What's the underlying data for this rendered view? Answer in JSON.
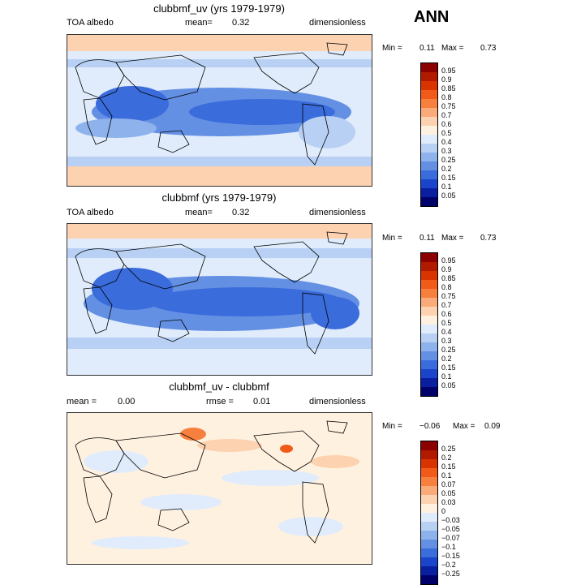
{
  "header": {
    "season": "ANN"
  },
  "panels": [
    {
      "title": "clubbmf_uv (yrs 1979-1979)",
      "variable": "TOA albedo",
      "stat_label": "mean=",
      "stat_value": "0.32",
      "units": "dimensionless",
      "min_label": "Min =",
      "min_value": "0.11",
      "max_label": "Max =",
      "max_value": "0.73",
      "colorbar": {
        "labels": [
          "0.95",
          "0.9",
          "0.85",
          "0.8",
          "0.75",
          "0.7",
          "0.6",
          "0.5",
          "0.4",
          "0.3",
          "0.25",
          "0.2",
          "0.15",
          "0.1",
          "0.05"
        ],
        "colors": [
          "#8b0000",
          "#b21a00",
          "#d93300",
          "#f25a1a",
          "#f7803f",
          "#fbaa7a",
          "#fdd2b0",
          "#fff1e0",
          "#e0ecfb",
          "#b8d0f4",
          "#8eb2ec",
          "#6490e4",
          "#3a6cdc",
          "#1a44cc",
          "#0a1ea0",
          "#00006b"
        ]
      }
    },
    {
      "title": "clubbmf (yrs 1979-1979)",
      "variable": "TOA albedo",
      "stat_label": "mean=",
      "stat_value": "0.32",
      "units": "dimensionless",
      "min_label": "Min =",
      "min_value": "0.11",
      "max_label": "Max =",
      "max_value": "0.73",
      "colorbar": {
        "labels": [
          "0.95",
          "0.9",
          "0.85",
          "0.8",
          "0.75",
          "0.7",
          "0.6",
          "0.5",
          "0.4",
          "0.3",
          "0.25",
          "0.2",
          "0.15",
          "0.1",
          "0.05"
        ],
        "colors": [
          "#8b0000",
          "#b21a00",
          "#d93300",
          "#f25a1a",
          "#f7803f",
          "#fbaa7a",
          "#fdd2b0",
          "#fff1e0",
          "#e0ecfb",
          "#b8d0f4",
          "#8eb2ec",
          "#6490e4",
          "#3a6cdc",
          "#1a44cc",
          "#0a1ea0",
          "#00006b"
        ]
      }
    },
    {
      "title": "clubbmf_uv - clubbmf",
      "mean_label": "mean =",
      "mean_value": "0.00",
      "rmse_label": "rmse =",
      "rmse_value": "0.01",
      "units": "dimensionless",
      "min_label": "Min =",
      "min_value": "−0.06",
      "max_label": "Max =",
      "max_value": "0.09",
      "colorbar": {
        "labels": [
          "0.25",
          "0.2",
          "0.15",
          "0.1",
          "0.07",
          "0.05",
          "0.03",
          "0",
          "−0.03",
          "−0.05",
          "−0.07",
          "−0.1",
          "−0.15",
          "−0.2",
          "−0.25"
        ],
        "colors": [
          "#8b0000",
          "#b21a00",
          "#d93300",
          "#f25a1a",
          "#f7803f",
          "#fbaa7a",
          "#fdd2b0",
          "#fff1e0",
          "#e0ecfb",
          "#b8d0f4",
          "#8eb2ec",
          "#6490e4",
          "#3a6cdc",
          "#1a44cc",
          "#0a1ea0",
          "#00006b"
        ]
      }
    }
  ]
}
